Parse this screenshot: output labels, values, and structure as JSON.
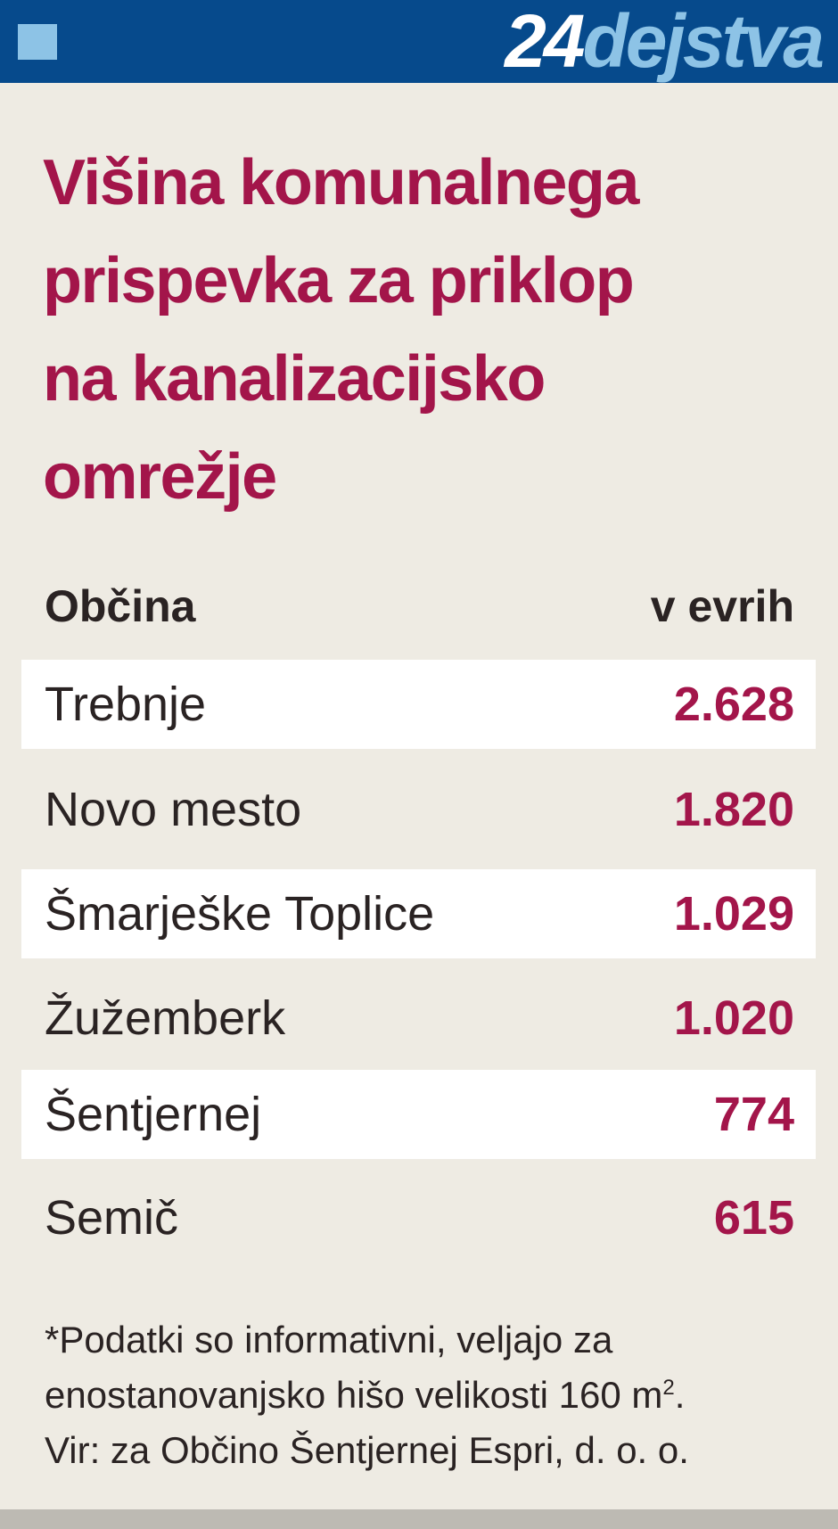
{
  "header": {
    "brand_number": "24",
    "brand_word": "dejstva"
  },
  "title": [
    "Višina komunalnega",
    "prispevka za priklop",
    "na kanalizacijsko",
    "omrežje"
  ],
  "table": {
    "columns": [
      "Občina",
      "v evrih"
    ],
    "rows": [
      [
        "Trebnje",
        "2.628"
      ],
      [
        "Novo mesto",
        "1.820"
      ],
      [
        "Šmarješke Toplice",
        "1.029"
      ],
      [
        "Žužemberk",
        "1.020"
      ],
      [
        "Šentjernej",
        "774"
      ],
      [
        "Semič",
        "615"
      ]
    ]
  },
  "note": {
    "line1": "*Podatki so informativni, veljajo za",
    "line2": "enostanovanjsko hišo velikosti 160 m",
    "line2_sup": "2",
    "line2_end": ".",
    "line3": "Vir: za Občino Šentjernej Espri, d. o. o."
  }
}
